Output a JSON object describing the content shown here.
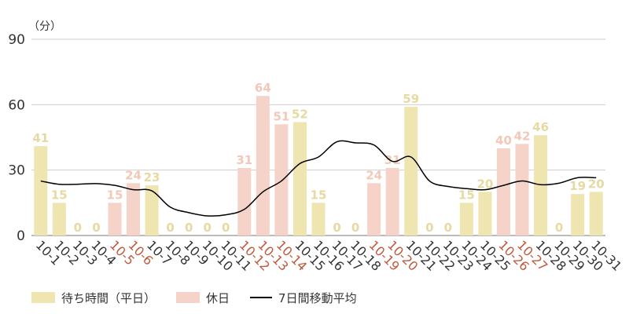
{
  "chart_data": {
    "type": "bar",
    "unit_label": "（分）",
    "yticks": [
      0,
      30,
      60,
      90
    ],
    "ylim": [
      0,
      90
    ],
    "categories": [
      "10-1",
      "10-2",
      "10-3",
      "10-4",
      "10-5",
      "10-6",
      "10-7",
      "10-8",
      "10-9",
      "10-10",
      "10-11",
      "10-12",
      "10-13",
      "10-14",
      "10-15",
      "10-16",
      "10-17",
      "10-18",
      "10-19",
      "10-20",
      "10-21",
      "10-22",
      "10-23",
      "10-24",
      "10-25",
      "10-26",
      "10-27",
      "10-28",
      "10-29",
      "10-30",
      "10-31"
    ],
    "holiday": [
      false,
      false,
      false,
      false,
      true,
      true,
      false,
      false,
      false,
      false,
      false,
      true,
      true,
      true,
      false,
      false,
      false,
      false,
      true,
      true,
      false,
      false,
      false,
      false,
      false,
      true,
      true,
      false,
      false,
      false,
      false
    ],
    "series": [
      {
        "name": "待ち時間（平日）",
        "kind": "bar",
        "color": "#efe5b1",
        "values": [
          41,
          15,
          0,
          0,
          null,
          null,
          23,
          0,
          0,
          0,
          0,
          null,
          null,
          null,
          52,
          15,
          0,
          0,
          null,
          null,
          59,
          0,
          0,
          15,
          20,
          null,
          null,
          46,
          0,
          19,
          20
        ]
      },
      {
        "name": "休日",
        "kind": "bar",
        "color": "#f5d3c8",
        "values": [
          null,
          null,
          null,
          null,
          15,
          24,
          null,
          null,
          null,
          null,
          null,
          31,
          64,
          51,
          null,
          null,
          null,
          null,
          24,
          31,
          null,
          null,
          null,
          null,
          null,
          40,
          42,
          null,
          null,
          null,
          null
        ]
      },
      {
        "name": "7日間移動平均",
        "kind": "line",
        "color": "#000000",
        "values": [
          25,
          23.5,
          23.5,
          23.8,
          23,
          21,
          20.5,
          13,
          10.5,
          9,
          9.5,
          12,
          20,
          25,
          33,
          36,
          43,
          42.5,
          41.5,
          34,
          36,
          25,
          22.5,
          21.5,
          21,
          23,
          25,
          23.3,
          24,
          26.5,
          26.5
        ]
      }
    ],
    "label_color_weekday": "#e6d9a2",
    "label_color_holiday": "#f3c8b8",
    "tick_label_color_holiday": "#c2583c",
    "tick_label_color_weekday": "#333333",
    "grid": true
  }
}
